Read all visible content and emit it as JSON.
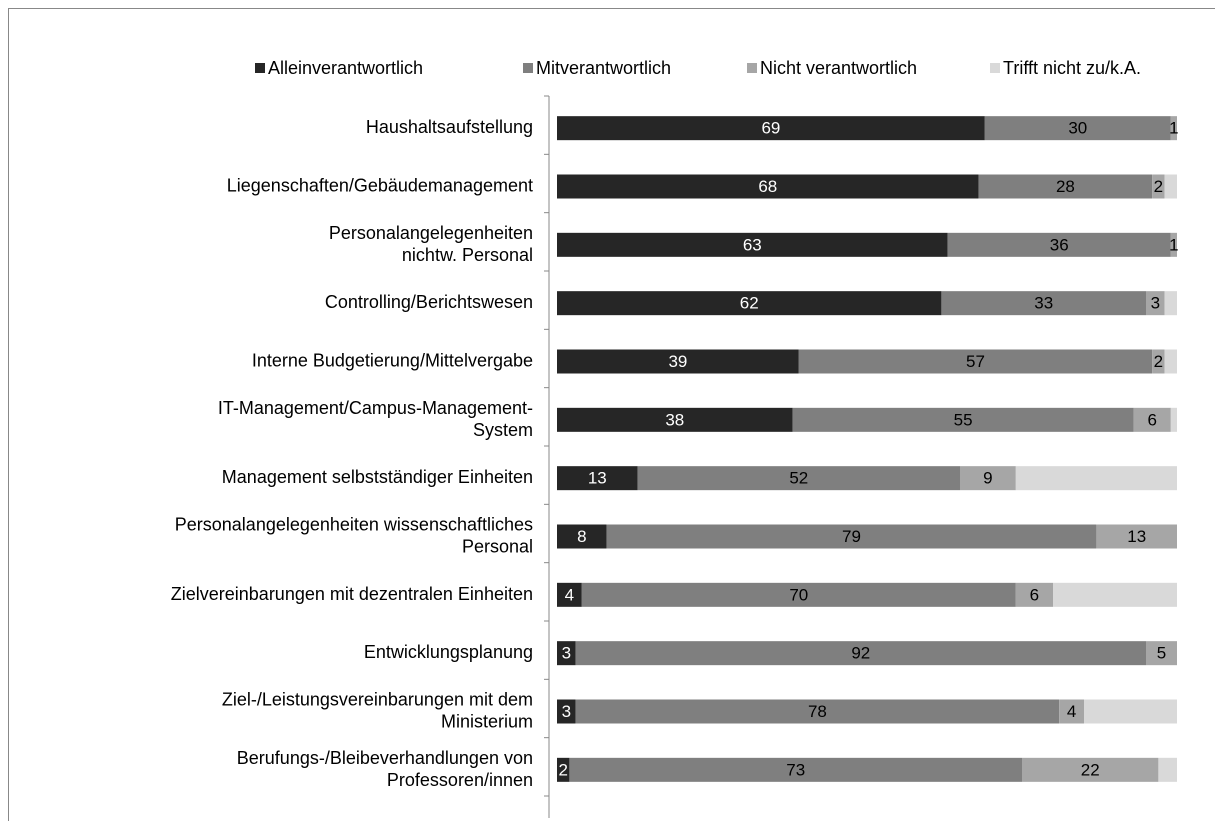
{
  "chart_data": {
    "type": "stacked-bar-horizontal",
    "categories": [
      "Haushaltsaufstellung",
      "Liegenschaften/Gebäudemanagement",
      "Personalangelegenheiten\nnichtw. Personal",
      "Controlling/Berichtswesen",
      "Interne Budgetierung/Mittelvergabe",
      "IT-Management/Campus-Management-\nSystem",
      "Management selbstständiger Einheiten",
      "Personalangelegenheiten wissenschaftliches\nPersonal",
      "Zielvereinbarungen mit dezentralen Einheiten",
      "Entwicklungsplanung",
      "Ziel-/Leistungsvereinbarungen mit dem\nMinisterium",
      "Berufungs-/Bleibeverhandlungen von\nProfessoren/innen"
    ],
    "series": [
      {
        "name": "Alleinverantwortlich",
        "color": "#262626",
        "label_color": "#ffffff",
        "labels": true,
        "values": [
          69,
          68,
          63,
          62,
          39,
          38,
          13,
          8,
          4,
          3,
          3,
          2
        ]
      },
      {
        "name": "Mitverantwortlich",
        "color": "#7f7f7f",
        "label_color": "#000000",
        "labels": true,
        "values": [
          30,
          28,
          36,
          33,
          57,
          55,
          52,
          79,
          70,
          92,
          78,
          73
        ]
      },
      {
        "name": "Nicht verantwortlich",
        "color": "#a6a6a6",
        "label_color": "#000000",
        "labels": true,
        "values": [
          1,
          2,
          1,
          3,
          2,
          6,
          9,
          13,
          6,
          5,
          4,
          22
        ]
      },
      {
        "name": "Trifft nicht zu/k.A.",
        "color": "#d9d9d9",
        "label_color": "#000000",
        "labels": false,
        "values": [
          0,
          2,
          0,
          2,
          2,
          1,
          26,
          0,
          20,
          0,
          15,
          3
        ]
      }
    ],
    "xlim": [
      0,
      100
    ],
    "legend": "top"
  }
}
